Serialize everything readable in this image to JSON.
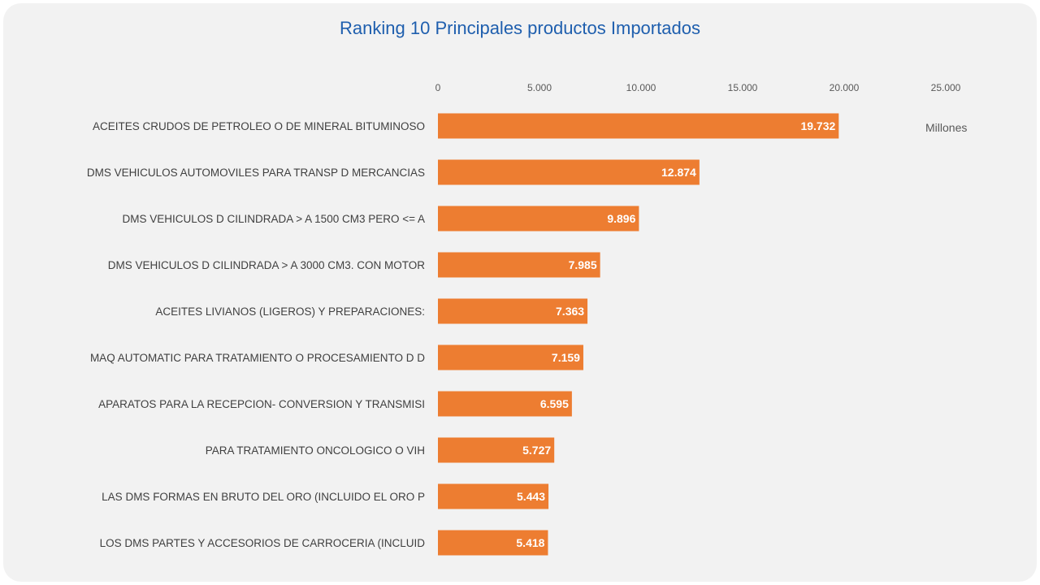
{
  "colors": {
    "bar": "#ed7d31",
    "title": "#1f5fae",
    "background": "#f2f2f2"
  },
  "chart_data": {
    "type": "bar",
    "orientation": "horizontal",
    "title": "Ranking 10 Principales productos Importados",
    "unit_label": "Millones",
    "xlim": [
      0,
      25000
    ],
    "x_ticks": [
      "0",
      "5.000",
      "10.000",
      "15.000",
      "20.000",
      "25.000"
    ],
    "x_tick_values": [
      0,
      5000,
      10000,
      15000,
      20000,
      25000
    ],
    "axis_position": "top",
    "grid": false,
    "categories": [
      "ACEITES CRUDOS DE PETROLEO O DE MINERAL BITUMINOSO",
      "DMS VEHICULOS AUTOMOVILES PARA TRANSP D MERCANCIAS",
      "DMS VEHICULOS D CILINDRADA > A 1500 CM3 PERO <= A",
      "DMS VEHICULOS D CILINDRADA > A 3000 CM3. CON MOTOR",
      "ACEITES LIVIANOS (LIGEROS) Y PREPARACIONES:",
      "MAQ AUTOMATIC PARA TRATAMIENTO O PROCESAMIENTO D D",
      "APARATOS PARA LA RECEPCION- CONVERSION Y TRANSMISI",
      "PARA TRATAMIENTO ONCOLOGICO O VIH",
      "LAS DMS FORMAS EN BRUTO DEL ORO (INCLUIDO EL ORO P",
      "LOS DMS PARTES Y ACCESORIOS DE CARROCERIA (INCLUID"
    ],
    "values": [
      19732,
      12874,
      9896,
      7985,
      7363,
      7159,
      6595,
      5727,
      5443,
      5418
    ],
    "value_labels": [
      "19.732",
      "12.874",
      "9.896",
      "7.985",
      "7.363",
      "7.159",
      "6.595",
      "5.727",
      "5.443",
      "5.418"
    ]
  }
}
